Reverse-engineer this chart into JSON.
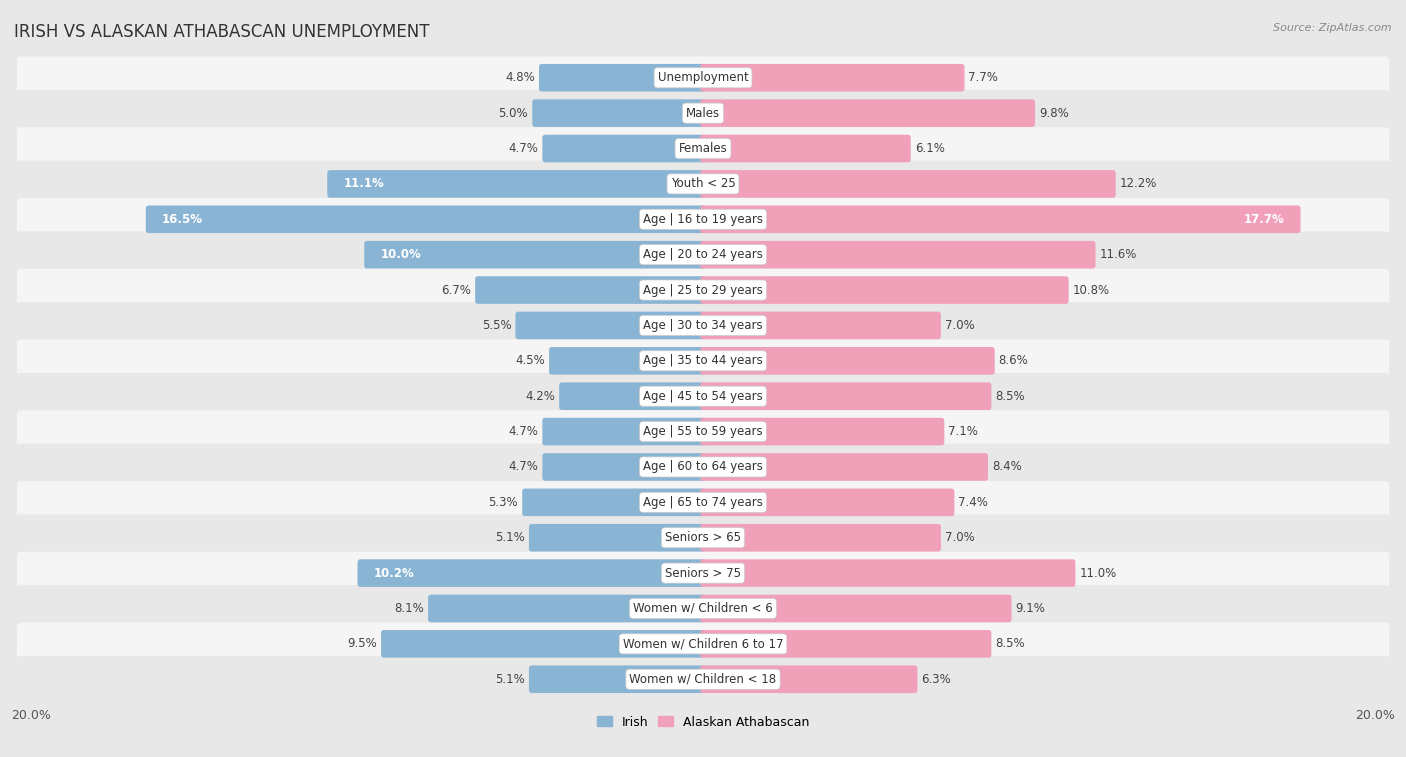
{
  "title": "IRISH VS ALASKAN ATHABASCAN UNEMPLOYMENT",
  "source": "Source: ZipAtlas.com",
  "categories": [
    "Unemployment",
    "Males",
    "Females",
    "Youth < 25",
    "Age | 16 to 19 years",
    "Age | 20 to 24 years",
    "Age | 25 to 29 years",
    "Age | 30 to 34 years",
    "Age | 35 to 44 years",
    "Age | 45 to 54 years",
    "Age | 55 to 59 years",
    "Age | 60 to 64 years",
    "Age | 65 to 74 years",
    "Seniors > 65",
    "Seniors > 75",
    "Women w/ Children < 6",
    "Women w/ Children 6 to 17",
    "Women w/ Children < 18"
  ],
  "irish_values": [
    4.8,
    5.0,
    4.7,
    11.1,
    16.5,
    10.0,
    6.7,
    5.5,
    4.5,
    4.2,
    4.7,
    4.7,
    5.3,
    5.1,
    10.2,
    8.1,
    9.5,
    5.1
  ],
  "alaskan_values": [
    7.7,
    9.8,
    6.1,
    12.2,
    17.7,
    11.6,
    10.8,
    7.0,
    8.6,
    8.5,
    7.1,
    8.4,
    7.4,
    7.0,
    11.0,
    9.1,
    8.5,
    6.3
  ],
  "irish_color": "#8ab4d4",
  "alaskan_color": "#f0a0b8",
  "axis_max": 20.0,
  "background_color": "#e8e8e8",
  "row_colors": [
    "#f5f5f5",
    "#e8e8e8"
  ],
  "title_fontsize": 12,
  "label_fontsize": 8.5,
  "tick_fontsize": 9,
  "value_fontsize": 8.5
}
